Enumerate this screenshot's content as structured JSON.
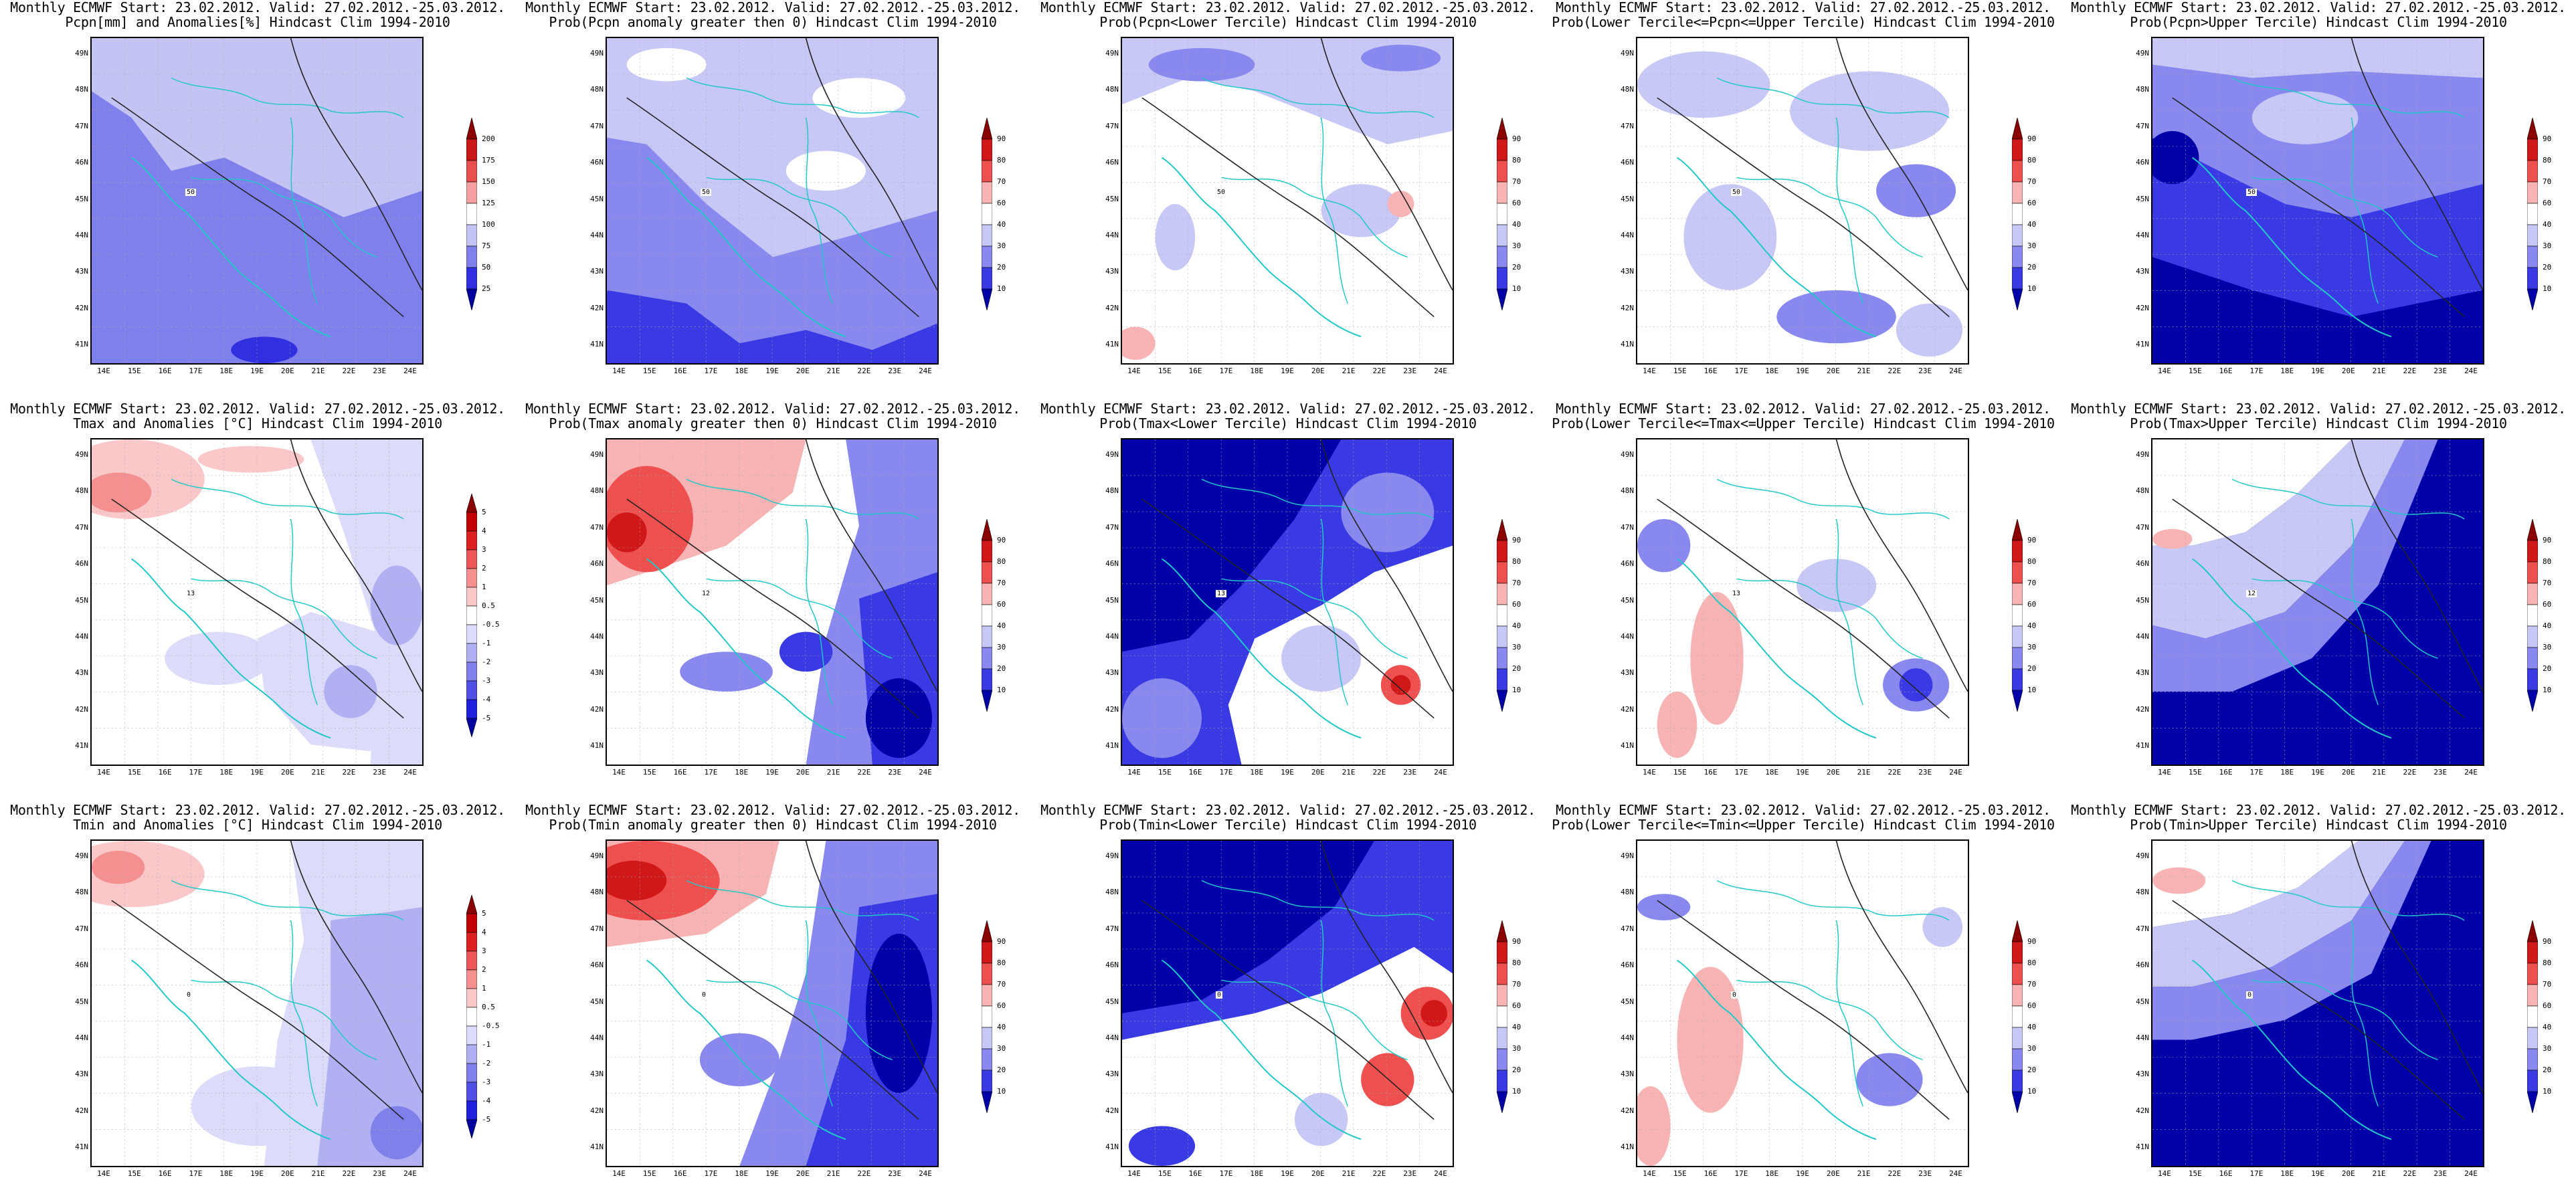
{
  "panels": [
    {
      "title1": "Monthly ECMWF Start: 23.02.2012. Valid: 27.02.2012.-25.03.2012.",
      "title2": "Pcpn[mm] and Anomalies[%] Hindcast Clim 1994-2010",
      "scale": "pcpn",
      "contour_label": "50",
      "pattern": "pcpn_anom"
    },
    {
      "title1": "Monthly ECMWF Start: 23.02.2012. Valid: 27.02.2012.-25.03.2012.",
      "title2": "Prob(Pcpn anomaly greater then 0) Hindcast Clim 1994-2010",
      "scale": "prob",
      "contour_label": "50",
      "pattern": "pcpn_pos"
    },
    {
      "title1": "Monthly ECMWF Start: 23.02.2012. Valid: 27.02.2012.-25.03.2012.",
      "title2": "Prob(Pcpn<Lower Tercile) Hindcast Clim 1994-2010",
      "scale": "prob",
      "contour_label": "50",
      "pattern": "pcpn_low"
    },
    {
      "title1": "Monthly ECMWF Start: 23.02.2012. Valid: 27.02.2012.-25.03.2012.",
      "title2": "Prob(Lower Tercile<=Pcpn<=Upper Tercile) Hindcast Clim 1994-2010",
      "scale": "prob",
      "contour_label": "50",
      "pattern": "pcpn_mid"
    },
    {
      "title1": "Monthly ECMWF Start: 23.02.2012. Valid: 27.02.2012.-25.03.2012.",
      "title2": "Prob(Pcpn>Upper Tercile) Hindcast Clim 1994-2010",
      "scale": "prob",
      "contour_label": "50",
      "pattern": "pcpn_up"
    },
    {
      "title1": "Monthly ECMWF Start: 23.02.2012. Valid: 27.02.2012.-25.03.2012.",
      "title2": "Tmax and Anomalies [°C] Hindcast Clim 1994-2010",
      "scale": "temp",
      "contour_label": "13",
      "pattern": "tmax_anom"
    },
    {
      "title1": "Monthly ECMWF Start: 23.02.2012. Valid: 27.02.2012.-25.03.2012.",
      "title2": "Prob(Tmax anomaly greater then 0) Hindcast Clim 1994-2010",
      "scale": "prob",
      "contour_label": "12",
      "pattern": "tmax_pos"
    },
    {
      "title1": "Monthly ECMWF Start: 23.02.2012. Valid: 27.02.2012.-25.03.2012.",
      "title2": "Prob(Tmax<Lower Tercile) Hindcast Clim 1994-2010",
      "scale": "prob",
      "contour_label": "13",
      "pattern": "tmax_low"
    },
    {
      "title1": "Monthly ECMWF Start: 23.02.2012. Valid: 27.02.2012.-25.03.2012.",
      "title2": "Prob(Lower Tercile<=Tmax<=Upper Tercile) Hindcast Clim 1994-2010",
      "scale": "prob",
      "contour_label": "13",
      "pattern": "tmax_mid"
    },
    {
      "title1": "Monthly ECMWF Start: 23.02.2012. Valid: 27.02.2012.-25.03.2012.",
      "title2": "Prob(Tmax>Upper Tercile) Hindcast Clim 1994-2010",
      "scale": "prob",
      "contour_label": "12",
      "pattern": "tmax_up"
    },
    {
      "title1": "Monthly ECMWF Start: 23.02.2012. Valid: 27.02.2012.-25.03.2012.",
      "title2": "Tmin and Anomalies [°C] Hindcast Clim 1994-2010",
      "scale": "temp",
      "contour_label": "0",
      "pattern": "tmin_anom"
    },
    {
      "title1": "Monthly ECMWF Start: 23.02.2012. Valid: 27.02.2012.-25.03.2012.",
      "title2": "Prob(Tmin anomaly greater then 0) Hindcast Clim 1994-2010",
      "scale": "prob",
      "contour_label": "0",
      "pattern": "tmin_pos"
    },
    {
      "title1": "Monthly ECMWF Start: 23.02.2012. Valid: 27.02.2012.-25.03.2012.",
      "title2": "Prob(Tmin<Lower Tercile) Hindcast Clim 1994-2010",
      "scale": "prob",
      "contour_label": "0",
      "pattern": "tmin_low"
    },
    {
      "title1": "Monthly ECMWF Start: 23.02.2012. Valid: 27.02.2012.-25.03.2012.",
      "title2": "Prob(Lower Tercile<=Tmin<=Upper Tercile) Hindcast Clim 1994-2010",
      "scale": "prob",
      "contour_label": "0",
      "pattern": "tmin_mid"
    },
    {
      "title1": "Monthly ECMWF Start: 23.02.2012. Valid: 27.02.2012.-25.03.2012.",
      "title2": "Prob(Tmin>Upper Tercile) Hindcast Clim 1994-2010",
      "scale": "prob",
      "contour_label": "0",
      "pattern": "tmin_up"
    }
  ],
  "axes": {
    "lat_labels": [
      "49N",
      "48N",
      "47N",
      "46N",
      "45N",
      "44N",
      "43N",
      "42N",
      "41N"
    ],
    "lon_labels": [
      "14E",
      "15E",
      "16E",
      "17E",
      "18E",
      "19E",
      "20E",
      "21E",
      "22E",
      "23E",
      "24E"
    ]
  },
  "scales": {
    "pcpn": {
      "labels": [
        "200",
        "175",
        "150",
        "125",
        "100",
        "75",
        "50",
        "25"
      ],
      "colors": [
        "#8b0000",
        "#c81818",
        "#e85050",
        "#f4a0a0",
        "#ffffff",
        "#c4c4f4",
        "#8080ec",
        "#3030e0",
        "#0000a0"
      ]
    },
    "prob": {
      "labels": [
        "90",
        "80",
        "70",
        "60",
        "40",
        "30",
        "20",
        "10"
      ],
      "colors": [
        "#8b0000",
        "#d01818",
        "#ee5050",
        "#f8b4b4",
        "#ffffff",
        "#c8c8f6",
        "#8888ee",
        "#3a3ae4",
        "#0000a8"
      ]
    },
    "temp": {
      "labels": [
        "5",
        "4",
        "3",
        "2",
        "1",
        "0.5",
        "-0.5",
        "-1",
        "-2",
        "-3",
        "-4",
        "-5"
      ],
      "colors": [
        "#8b0000",
        "#c00000",
        "#dc2020",
        "#ec5858",
        "#f49090",
        "#fac8c8",
        "#ffffff",
        "#dcdcfa",
        "#b0b0f2",
        "#8080ea",
        "#5050e4",
        "#2020dc",
        "#0000a0"
      ]
    }
  }
}
